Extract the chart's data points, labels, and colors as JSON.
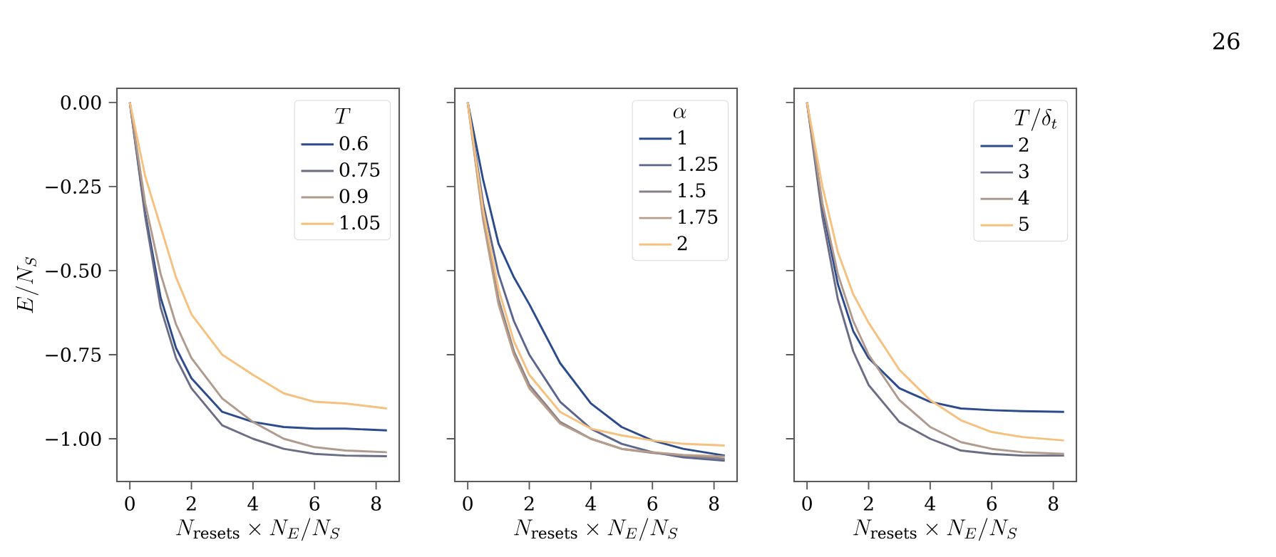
{
  "chart_data": [
    {
      "type": "line",
      "xlabel": "N_{\\mathrm{resets}} \\times N_E/N_S",
      "ylabel": "E/N_S",
      "legend_title": "T",
      "legend": "top right",
      "xlim": [
        -0.42,
        8.75
      ],
      "ylim": [
        -1.127,
        0.042
      ],
      "xticks": [
        0,
        2,
        4,
        6,
        8
      ],
      "yticks": [
        {
          "value": 0,
          "label": "0.00"
        },
        {
          "value": -0.25,
          "label": "−0.25"
        },
        {
          "value": -0.5,
          "label": "−0.50"
        },
        {
          "value": -0.75,
          "label": "−0.75"
        },
        {
          "value": -1,
          "label": "−1.00"
        }
      ],
      "x": [
        0,
        0.5,
        1,
        1.5,
        2,
        3,
        4,
        5,
        6,
        7,
        8.35
      ],
      "series": [
        {
          "name": "0.6",
          "color": "#2b4b8c",
          "values": [
            0,
            -0.33,
            -0.58,
            -0.73,
            -0.82,
            -0.92,
            -0.95,
            -0.965,
            -0.97,
            -0.97,
            -0.975
          ]
        },
        {
          "name": "0.75",
          "color": "#6b6d85",
          "values": [
            0,
            -0.34,
            -0.61,
            -0.76,
            -0.85,
            -0.96,
            -1.0,
            -1.03,
            -1.045,
            -1.05,
            -1.052
          ]
        },
        {
          "name": "0.9",
          "color": "#b09a8e",
          "values": [
            0,
            -0.3,
            -0.51,
            -0.66,
            -0.76,
            -0.88,
            -0.95,
            -1.0,
            -1.025,
            -1.035,
            -1.04
          ]
        },
        {
          "name": "1.05",
          "color": "#f6c07e",
          "values": [
            0,
            -0.22,
            -0.37,
            -0.52,
            -0.63,
            -0.75,
            -0.81,
            -0.865,
            -0.89,
            -0.895,
            -0.91
          ]
        }
      ]
    },
    {
      "type": "line",
      "xlabel": "N_{\\mathrm{resets}} \\times N_E/N_S",
      "legend_title": "\\alpha",
      "legend": "top right",
      "tick_labels": "x",
      "xlim": [
        -0.42,
        8.75
      ],
      "ylim": [
        -1.127,
        0.042
      ],
      "xticks": [
        0,
        2,
        4,
        6,
        8
      ],
      "yticks": [
        0,
        -0.25,
        -0.5,
        -0.75,
        -1
      ],
      "x": [
        0,
        0.5,
        1,
        1.5,
        2,
        3,
        4,
        5,
        6,
        7,
        8.35
      ],
      "series": [
        {
          "name": "1",
          "color": "#2b4b8c",
          "values": [
            0,
            -0.23,
            -0.42,
            -0.52,
            -0.6,
            -0.775,
            -0.895,
            -0.965,
            -1.005,
            -1.03,
            -1.05
          ]
        },
        {
          "name": "1.25",
          "color": "#5a6590",
          "values": [
            0,
            -0.3,
            -0.51,
            -0.65,
            -0.75,
            -0.89,
            -0.97,
            -1.015,
            -1.04,
            -1.055,
            -1.065
          ]
        },
        {
          "name": "1.5",
          "color": "#8a8088",
          "values": [
            0,
            -0.34,
            -0.585,
            -0.74,
            -0.84,
            -0.95,
            -1.0,
            -1.03,
            -1.042,
            -1.05,
            -1.06
          ]
        },
        {
          "name": "1.75",
          "color": "#b89e8a",
          "values": [
            0,
            -0.35,
            -0.6,
            -0.75,
            -0.85,
            -0.955,
            -1.0,
            -1.03,
            -1.04,
            -1.048,
            -1.053
          ]
        },
        {
          "name": "2",
          "color": "#f6c07e",
          "values": [
            0,
            -0.32,
            -0.555,
            -0.71,
            -0.81,
            -0.92,
            -0.97,
            -0.99,
            -1.005,
            -1.015,
            -1.02
          ]
        }
      ]
    },
    {
      "type": "line",
      "xlabel": "N_{\\mathrm{resets}} \\times N_E/N_S",
      "legend_title": "T/\\delta_t",
      "legend": "top right",
      "tick_labels": "x",
      "annotations": [
        "26"
      ],
      "xlim": [
        -0.42,
        8.75
      ],
      "ylim": [
        -1.127,
        0.042
      ],
      "xticks": [
        0,
        2,
        4,
        6,
        8
      ],
      "yticks": [
        0,
        -0.25,
        -0.5,
        -0.75,
        -1
      ],
      "x": [
        0,
        0.5,
        1,
        1.5,
        2,
        3,
        4,
        5,
        6,
        7,
        8.35
      ],
      "series": [
        {
          "name": "2",
          "color": "#2b4b8c",
          "values": [
            0,
            -0.31,
            -0.54,
            -0.68,
            -0.76,
            -0.85,
            -0.89,
            -0.91,
            -0.915,
            -0.918,
            -0.92
          ]
        },
        {
          "name": "3",
          "color": "#6b6d85",
          "values": [
            0,
            -0.34,
            -0.585,
            -0.74,
            -0.84,
            -0.95,
            -1.0,
            -1.035,
            -1.045,
            -1.05,
            -1.05
          ]
        },
        {
          "name": "4",
          "color": "#b09a8e",
          "values": [
            0,
            -0.3,
            -0.51,
            -0.65,
            -0.75,
            -0.885,
            -0.965,
            -1.01,
            -1.03,
            -1.04,
            -1.045
          ]
        },
        {
          "name": "5",
          "color": "#f6c07e",
          "values": [
            0,
            -0.25,
            -0.445,
            -0.57,
            -0.655,
            -0.795,
            -0.885,
            -0.945,
            -0.98,
            -0.995,
            -1.005
          ]
        }
      ]
    }
  ]
}
